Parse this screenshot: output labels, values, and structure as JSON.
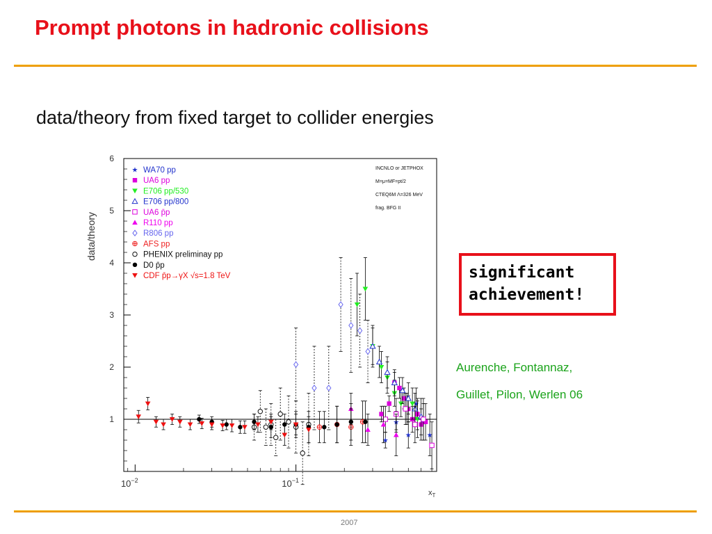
{
  "slide": {
    "title": "Prompt photons in hadronic collisions",
    "subtitle": "data/theory from fixed target to collider energies",
    "callout_line1": "significant",
    "callout_line2": "achievement!",
    "authors_line1": "Aurenche, Fontannaz,",
    "authors_line2": "Guillet, Pilon, Werlen 06",
    "footer": "2007",
    "colors": {
      "title": "#e8101a",
      "rule": "#f0a000",
      "authors": "#1aa31a",
      "callout_border": "#e8101a"
    }
  },
  "chart_data": {
    "type": "scatter",
    "xlabel": "x_T",
    "ylabel": "data/theory",
    "xscale": "log",
    "xlim": [
      0.0085,
      0.75
    ],
    "ylim": [
      0,
      6
    ],
    "x_tick_labels": [
      "10^-2",
      "10^-1"
    ],
    "y_ticks": [
      1,
      2,
      3,
      4,
      5,
      6
    ],
    "reference_line": 1,
    "notes": [
      "INCNLO or JETPHOX",
      "M=μ=MF=pt/2",
      "CTEQ6M Λ=326 MeV",
      "frag. BFG II"
    ],
    "legend_position": "top-left",
    "series": [
      {
        "name": "WA70 pp",
        "marker": "star",
        "color": "#2233cc",
        "x": [
          0.36,
          0.42,
          0.5,
          0.56,
          0.62,
          0.68
        ],
        "y": [
          0.6,
          0.95,
          0.7,
          1.3,
          0.95,
          0.7
        ],
        "err": [
          0.15,
          0.2,
          0.25,
          0.3,
          0.35,
          0.4
        ]
      },
      {
        "name": "UA6 pp",
        "marker": "square",
        "color": "#dd00dd",
        "x": [
          0.34,
          0.38,
          0.41,
          0.44,
          0.47,
          0.5,
          0.53,
          0.57,
          0.6,
          0.64
        ],
        "y": [
          1.1,
          1.3,
          1.7,
          1.6,
          1.4,
          1.2,
          1.0,
          1.1,
          0.9,
          0.95
        ],
        "err": [
          0.15,
          0.15,
          0.2,
          0.2,
          0.2,
          0.25,
          0.25,
          0.3,
          0.3,
          0.35
        ]
      },
      {
        "name": "E706 pp/530",
        "marker": "tri-down",
        "color": "#22ee22",
        "x": [
          0.24,
          0.27,
          0.3,
          0.34,
          0.37,
          0.41,
          0.45,
          0.49,
          0.53,
          0.57
        ],
        "y": [
          3.2,
          3.5,
          2.4,
          2.0,
          1.8,
          1.5,
          1.3,
          1.2,
          1.3,
          1.0
        ],
        "err": [
          0.6,
          0.6,
          0.4,
          0.3,
          0.3,
          0.25,
          0.25,
          0.3,
          0.3,
          0.35
        ]
      },
      {
        "name": "E706 pp/800",
        "marker": "tri-up-open",
        "color": "#2233cc",
        "x": [
          0.3,
          0.33,
          0.37,
          0.41,
          0.46,
          0.5,
          0.55,
          0.6
        ],
        "y": [
          2.4,
          2.1,
          1.9,
          1.7,
          1.55,
          1.4,
          1.2,
          1.05
        ],
        "err": [
          0.35,
          0.3,
          0.3,
          0.25,
          0.25,
          0.3,
          0.3,
          0.35
        ]
      },
      {
        "name": "UA6 p̄p",
        "marker": "square-open",
        "color": "#dd00dd",
        "x": [
          0.36,
          0.42,
          0.48,
          0.55,
          0.62,
          0.7
        ],
        "y": [
          1.0,
          1.1,
          1.2,
          0.9,
          1.0,
          0.5
        ],
        "err": [
          0.25,
          0.3,
          0.3,
          0.35,
          0.4,
          0.45
        ]
      },
      {
        "name": "R110 pp",
        "marker": "tri-up",
        "color": "#ee00ee",
        "x": [
          0.22,
          0.28,
          0.35,
          0.42
        ],
        "y": [
          1.2,
          0.8,
          0.9,
          0.7
        ],
        "err": [
          0.3,
          0.3,
          0.35,
          0.4
        ]
      },
      {
        "name": "R806 pp",
        "marker": "diamond-open",
        "color": "#6666ee",
        "x": [
          0.1,
          0.13,
          0.16,
          0.19,
          0.22,
          0.25,
          0.28
        ],
        "y": [
          2.05,
          1.6,
          1.6,
          3.2,
          2.8,
          2.7,
          2.3
        ],
        "err": [
          0.7,
          0.8,
          0.8,
          0.9,
          0.9,
          0.7,
          0.6
        ]
      },
      {
        "name": "AFS pp",
        "marker": "cross-circle",
        "color": "#ee2222",
        "x": [
          0.14,
          0.18,
          0.22,
          0.26
        ],
        "y": [
          0.85,
          0.9,
          0.85,
          0.95
        ],
        "err": [
          0.3,
          0.35,
          0.35,
          0.4
        ]
      },
      {
        "name": "PHENIX preliminay pp",
        "marker": "circle-open",
        "color": "#111111",
        "x": [
          0.055,
          0.06,
          0.065,
          0.07,
          0.075,
          0.08,
          0.09,
          0.1,
          0.11,
          0.12
        ],
        "y": [
          0.85,
          1.15,
          0.85,
          0.9,
          0.65,
          1.1,
          0.95,
          0.85,
          0.35,
          0.9
        ],
        "err": [
          0.25,
          0.4,
          0.35,
          0.4,
          0.35,
          0.5,
          0.5,
          0.5,
          0.6,
          0.6
        ]
      },
      {
        "name": "D0 p̄p",
        "marker": "circle",
        "color": "#000000",
        "x": [
          0.025,
          0.03,
          0.037,
          0.045,
          0.055,
          0.07,
          0.085,
          0.1,
          0.12,
          0.15,
          0.18,
          0.22,
          0.27
        ],
        "y": [
          1.0,
          0.95,
          0.9,
          0.85,
          0.95,
          0.85,
          0.9,
          0.9,
          0.85,
          0.85,
          0.9,
          0.95,
          0.95
        ],
        "err": [
          0.08,
          0.1,
          0.1,
          0.12,
          0.15,
          0.2,
          0.2,
          0.25,
          0.3,
          0.3,
          0.35,
          0.35,
          0.4
        ]
      },
      {
        "name": "CDF p̄p→γX √s=1.8 TeV",
        "marker": "tri-down",
        "color": "#ee1111",
        "x": [
          0.0105,
          0.012,
          0.0135,
          0.015,
          0.017,
          0.019,
          0.022,
          0.026,
          0.03,
          0.035,
          0.04,
          0.048,
          0.058,
          0.07,
          0.085,
          0.1,
          0.12
        ],
        "y": [
          1.05,
          1.3,
          0.95,
          0.9,
          1.0,
          0.95,
          0.9,
          0.92,
          0.9,
          0.88,
          0.88,
          0.85,
          0.9,
          0.95,
          0.7,
          0.9,
          0.8
        ],
        "err": [
          0.12,
          0.12,
          0.1,
          0.1,
          0.1,
          0.1,
          0.1,
          0.1,
          0.1,
          0.1,
          0.12,
          0.12,
          0.15,
          0.15,
          0.2,
          0.2,
          0.25
        ]
      }
    ]
  }
}
